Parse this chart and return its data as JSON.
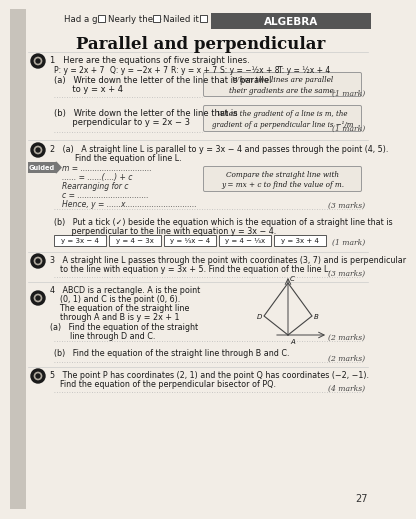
{
  "title": "Parallel and perpendicular",
  "header_left": "Had a go",
  "header_mid1": "Nearly there",
  "header_mid2": "Nailed it!",
  "header_right": "ALGEBRA",
  "bg_color": "#f2ede6",
  "algebra_bg": "#555555",
  "algebra_fg": "#ffffff",
  "hint_bg": "#ede8e0",
  "hint_border": "#999999",
  "guided_bg": "#777777",
  "guided_fg": "#ffffff",
  "answer_line_color": "#bbbbbb",
  "marks_color": "#444444",
  "left_strip_color": "#c8c3bb",
  "bullet_outer": "#1a1a1a",
  "q1_header": "1   Here are the equations of five straight lines.",
  "q1_lines_P": "P: y = 2x + 7",
  "q1_lines_Q": "Q: y = −2x + 7",
  "q1_lines_R": "R: y = x + 7",
  "q1_lines_S": "S: y = −½x + 8",
  "q1_lines_T": "T: y = ½x + 4",
  "q1a_text1": "(a)   Write down the letter of the line that is parallel",
  "q1a_text2": "       to y = x + 4",
  "q1a_hint": "When two lines are parallel\ntheir gradients are the same.",
  "q1b_text1": "(b)   Write down the letter of the line that is",
  "q1b_text2": "       perpendicular to y = 2x − 3",
  "q1b_hint": "When the gradient of a line is m, the\ngradient of a perpendicular line is −¹/m",
  "mark1": "(1 mark)",
  "mark1b": "(1 mark)",
  "mark3": "(3 marks)",
  "mark3b": "(3 marks)",
  "mark1c": "(1 mark)",
  "mark2a": "(2 marks)",
  "mark2b": "(2 marks)",
  "mark4": "(4 marks)",
  "q2_header1": "2   (a)   A straight line L is parallel to y = 3x − 4 and passes through the point (4, 5).",
  "q2_header2": "          Find the equation of line L.",
  "q2_guided": "Guided",
  "q2_step1": "m = ..............................",
  "q2_step2": "...... = ......(....) + c",
  "q2_step3": "Rearranging for c",
  "q2_step4": "c = ..............................",
  "q2_step5": "Hence, y = ......x..............................",
  "q2_hint": "Compare the straight line with\ny = mx + c to find the value of m.",
  "q2b_text1": "(b)   Put a tick (✓) beside the equation which is the equation of a straight line that is",
  "q2b_text2": "       perpendicular to the line with equation y = 3x − 4.",
  "q2b_opt1": "y = 3x − 4",
  "q2b_opt2": "y = 4 − 3x",
  "q2b_opt3": "y = ⅓x − 4",
  "q2b_opt4": "y = 4 − ⅓x",
  "q2b_opt5": "y = 3x + 4",
  "q3_text1": "3   A straight line L passes through the point with coordinates (3, 7) and is perpendicular",
  "q3_text2": "    to the line with equation y = 3x + 5. Find the equation of the line L.",
  "q4_text1": "4   ABCD is a rectangle. A is the point",
  "q4_text2": "    (0, 1) and C is the point (0, 6).",
  "q4_text3": "    The equation of the straight line",
  "q4_text4": "    through A and B is y = 2x + 1",
  "q4a_text1": "(a)   Find the equation of the straight",
  "q4a_text2": "        line through D and C.",
  "q4b_text": "(b)   Find the equation of the straight line through B and C.",
  "q5_text1": "5   The point P has coordinates (2, 1) and the point Q has coordinates (−2, −1).",
  "q5_text2": "    Find the equation of the perpendicular bisector of PQ.",
  "page_num": "27"
}
